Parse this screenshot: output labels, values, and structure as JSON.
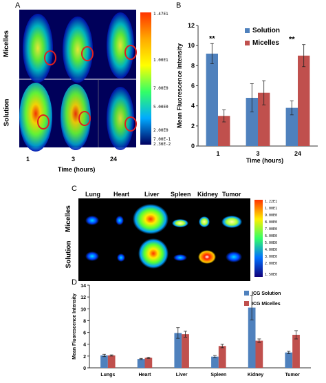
{
  "panelA": {
    "letter": "A",
    "row_labels": [
      "Micelles",
      "Solution"
    ],
    "time_ticks": [
      "1",
      "3",
      "24"
    ],
    "time_label": "Time (hours)",
    "colorbar_labels": [
      "1.47E1",
      "1.00E1",
      "7.00E0",
      "5.00E0",
      "2.00E0",
      "7.00E-1",
      "2.36E-2"
    ]
  },
  "panelC": {
    "letter": "C",
    "organs": [
      "Lung",
      "Heart",
      "Liver",
      "Spleen",
      "Kidney",
      "Tumor"
    ],
    "row_labels": [
      "Micelles",
      "Solution"
    ],
    "colorbar_labels": [
      "1.22E1",
      "1.00E1",
      "9.00E0",
      "8.00E0",
      "7.00E0",
      "6.00E0",
      "5.00E0",
      "4.00E0",
      "3.00E0",
      "2.00E0",
      "1.50E0"
    ]
  },
  "chart_data": [
    {
      "panel": "B",
      "type": "bar",
      "categories": [
        "1",
        "3",
        "24"
      ],
      "series": [
        {
          "name": "Solution",
          "values": [
            9.2,
            4.8,
            3.8
          ],
          "errors": [
            1.0,
            1.4,
            0.7
          ],
          "color": "#4F81BD"
        },
        {
          "name": "Micelles",
          "values": [
            3.0,
            5.3,
            9.0
          ],
          "errors": [
            0.6,
            1.2,
            1.1
          ],
          "color": "#C0504D"
        }
      ],
      "annotations": [
        "**",
        "",
        "**"
      ],
      "xlabel": "Time (hours)",
      "ylabel": "Mean Fluorescence Intensity",
      "ylim": [
        0,
        12
      ],
      "yticks": [
        0,
        2,
        4,
        6,
        8,
        10,
        12
      ],
      "legend": "top-right"
    },
    {
      "panel": "D",
      "type": "bar",
      "categories": [
        "Lungs",
        "Heart",
        "Liver",
        "Spleen",
        "Kidney",
        "Tumor"
      ],
      "series": [
        {
          "name": "ICG Solution",
          "values": [
            2.1,
            1.5,
            5.9,
            1.9,
            10.2,
            2.6
          ],
          "errors": [
            0.2,
            0.1,
            0.9,
            0.2,
            2.1,
            0.2
          ],
          "color": "#4F81BD"
        },
        {
          "name": "ICG Micelles",
          "values": [
            2.1,
            1.7,
            5.7,
            3.7,
            4.6,
            5.6
          ],
          "errors": [
            0.1,
            0.1,
            0.5,
            0.3,
            0.3,
            0.7
          ],
          "color": "#C0504D"
        }
      ],
      "xlabel": "",
      "ylabel": "Mean Fluorescence Intensity",
      "ylim": [
        0,
        14
      ],
      "yticks": [
        0,
        2,
        4,
        6,
        8,
        10,
        12,
        14
      ],
      "legend": "top-right"
    }
  ]
}
